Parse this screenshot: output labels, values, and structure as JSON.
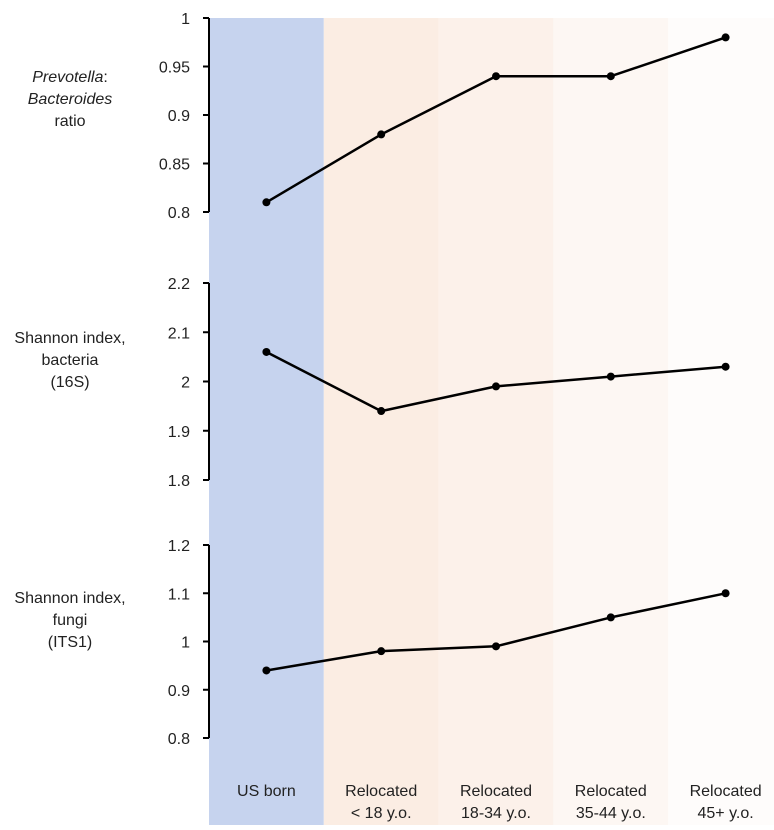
{
  "categories": [
    {
      "line1": "US born",
      "line2": ""
    },
    {
      "line1": "Relocated",
      "line2": "< 18 y.o."
    },
    {
      "line1": "Relocated",
      "line2": "18-34 y.o."
    },
    {
      "line1": "Relocated",
      "line2": "35-44 y.o."
    },
    {
      "line1": "Relocated",
      "line2": "45+ y.o."
    }
  ],
  "band_colors": [
    "#c6d3ee",
    "#fbede3",
    "#fcf1ea",
    "#fdf7f3",
    "#fefcfb"
  ],
  "chart_data": [
    {
      "type": "line",
      "ylabel_lines": [
        {
          "segments": [
            {
              "text": "Prevotella",
              "italic": true
            },
            {
              "text": ":",
              "italic": false
            }
          ]
        },
        {
          "segments": [
            {
              "text": "Bacteroides",
              "italic": true
            }
          ]
        },
        {
          "segments": [
            {
              "text": "ratio",
              "italic": false
            }
          ]
        }
      ],
      "ylim": [
        0.8,
        1.0
      ],
      "yticks": [
        "1",
        "0.95",
        "0.9",
        "0.85",
        "0.8"
      ],
      "ytick_values": [
        1.0,
        0.95,
        0.9,
        0.85,
        0.8
      ],
      "values": [
        0.81,
        0.88,
        0.94,
        0.94,
        0.98
      ]
    },
    {
      "type": "line",
      "ylabel_lines": [
        {
          "segments": [
            {
              "text": "Shannon index,",
              "italic": false
            }
          ]
        },
        {
          "segments": [
            {
              "text": "bacteria",
              "italic": false
            }
          ]
        },
        {
          "segments": [
            {
              "text": "(16S)",
              "italic": false
            }
          ]
        }
      ],
      "ylim": [
        1.8,
        2.2
      ],
      "yticks": [
        "2.2",
        "2.1",
        "2",
        "1.9",
        "1.8"
      ],
      "ytick_values": [
        2.2,
        2.1,
        2.0,
        1.9,
        1.8
      ],
      "values": [
        2.06,
        1.94,
        1.99,
        2.01,
        2.03
      ]
    },
    {
      "type": "line",
      "ylabel_lines": [
        {
          "segments": [
            {
              "text": "Shannon index,",
              "italic": false
            }
          ]
        },
        {
          "segments": [
            {
              "text": "fungi",
              "italic": false
            }
          ]
        },
        {
          "segments": [
            {
              "text": "(ITS1)",
              "italic": false
            }
          ]
        }
      ],
      "ylim": [
        0.8,
        1.2
      ],
      "yticks": [
        "1.2",
        "1.1",
        "1",
        "0.9",
        "0.8"
      ],
      "ytick_values": [
        1.2,
        1.1,
        1.0,
        0.9,
        0.8
      ],
      "values": [
        0.94,
        0.98,
        0.99,
        1.05,
        1.1
      ]
    }
  ]
}
